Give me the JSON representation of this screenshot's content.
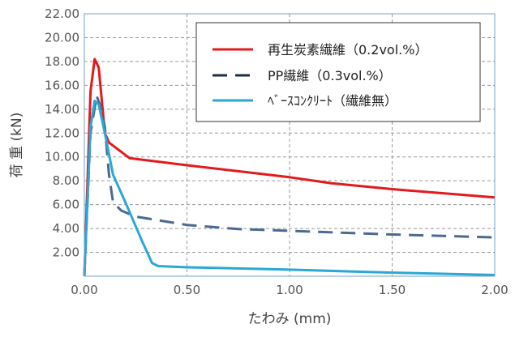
{
  "chart_data": {
    "type": "line",
    "xlabel": "たわみ (mm)",
    "ylabel": "荷 重 (kN)",
    "xlim": [
      0,
      2
    ],
    "ylim": [
      0,
      22
    ],
    "x_ticks": [
      "0.00",
      "0.50",
      "1.00",
      "1.50",
      "2.00"
    ],
    "y_ticks": [
      "2.00",
      "4.00",
      "6.00",
      "8.00",
      "10.00",
      "12.00",
      "14.00",
      "16.00",
      "18.00",
      "20.00",
      "22.00"
    ],
    "grid": true,
    "legend_position": "top-right",
    "series": [
      {
        "name": "再生炭素繊維（0.2vol.%）",
        "color": "#e31a1c",
        "dash": "solid",
        "points": [
          [
            0,
            0
          ],
          [
            0.03,
            15.5
          ],
          [
            0.05,
            18.2
          ],
          [
            0.07,
            17.5
          ],
          [
            0.1,
            12.0
          ],
          [
            0.12,
            11.2
          ],
          [
            0.22,
            9.9
          ],
          [
            0.5,
            9.3
          ],
          [
            1.0,
            8.3
          ],
          [
            1.2,
            7.8
          ],
          [
            1.5,
            7.3
          ],
          [
            2.0,
            6.6
          ]
        ]
      },
      {
        "name": "PP繊維（0.3vol.%）",
        "color": "#4a6a8f",
        "dash": "dashed",
        "points": [
          [
            0,
            0
          ],
          [
            0.03,
            12.0
          ],
          [
            0.06,
            15.1
          ],
          [
            0.08,
            14.2
          ],
          [
            0.1,
            12.5
          ],
          [
            0.12,
            8.5
          ],
          [
            0.14,
            6.2
          ],
          [
            0.18,
            5.5
          ],
          [
            0.25,
            5.0
          ],
          [
            0.5,
            4.3
          ],
          [
            0.75,
            3.95
          ],
          [
            1.0,
            3.8
          ],
          [
            1.5,
            3.5
          ],
          [
            2.0,
            3.25
          ]
        ]
      },
      {
        "name": "ﾍﾞｰｽｺﾝｸﾘｰﾄ（繊維無）",
        "color": "#2aa7d6",
        "dash": "solid",
        "points": [
          [
            0,
            0
          ],
          [
            0.03,
            12.5
          ],
          [
            0.05,
            14.7
          ],
          [
            0.07,
            14.4
          ],
          [
            0.1,
            12.0
          ],
          [
            0.14,
            8.5
          ],
          [
            0.2,
            6.2
          ],
          [
            0.28,
            3.0
          ],
          [
            0.33,
            1.1
          ],
          [
            0.36,
            0.85
          ],
          [
            0.5,
            0.75
          ],
          [
            1.0,
            0.55
          ],
          [
            1.5,
            0.3
          ],
          [
            2.0,
            0.1
          ]
        ]
      }
    ]
  }
}
